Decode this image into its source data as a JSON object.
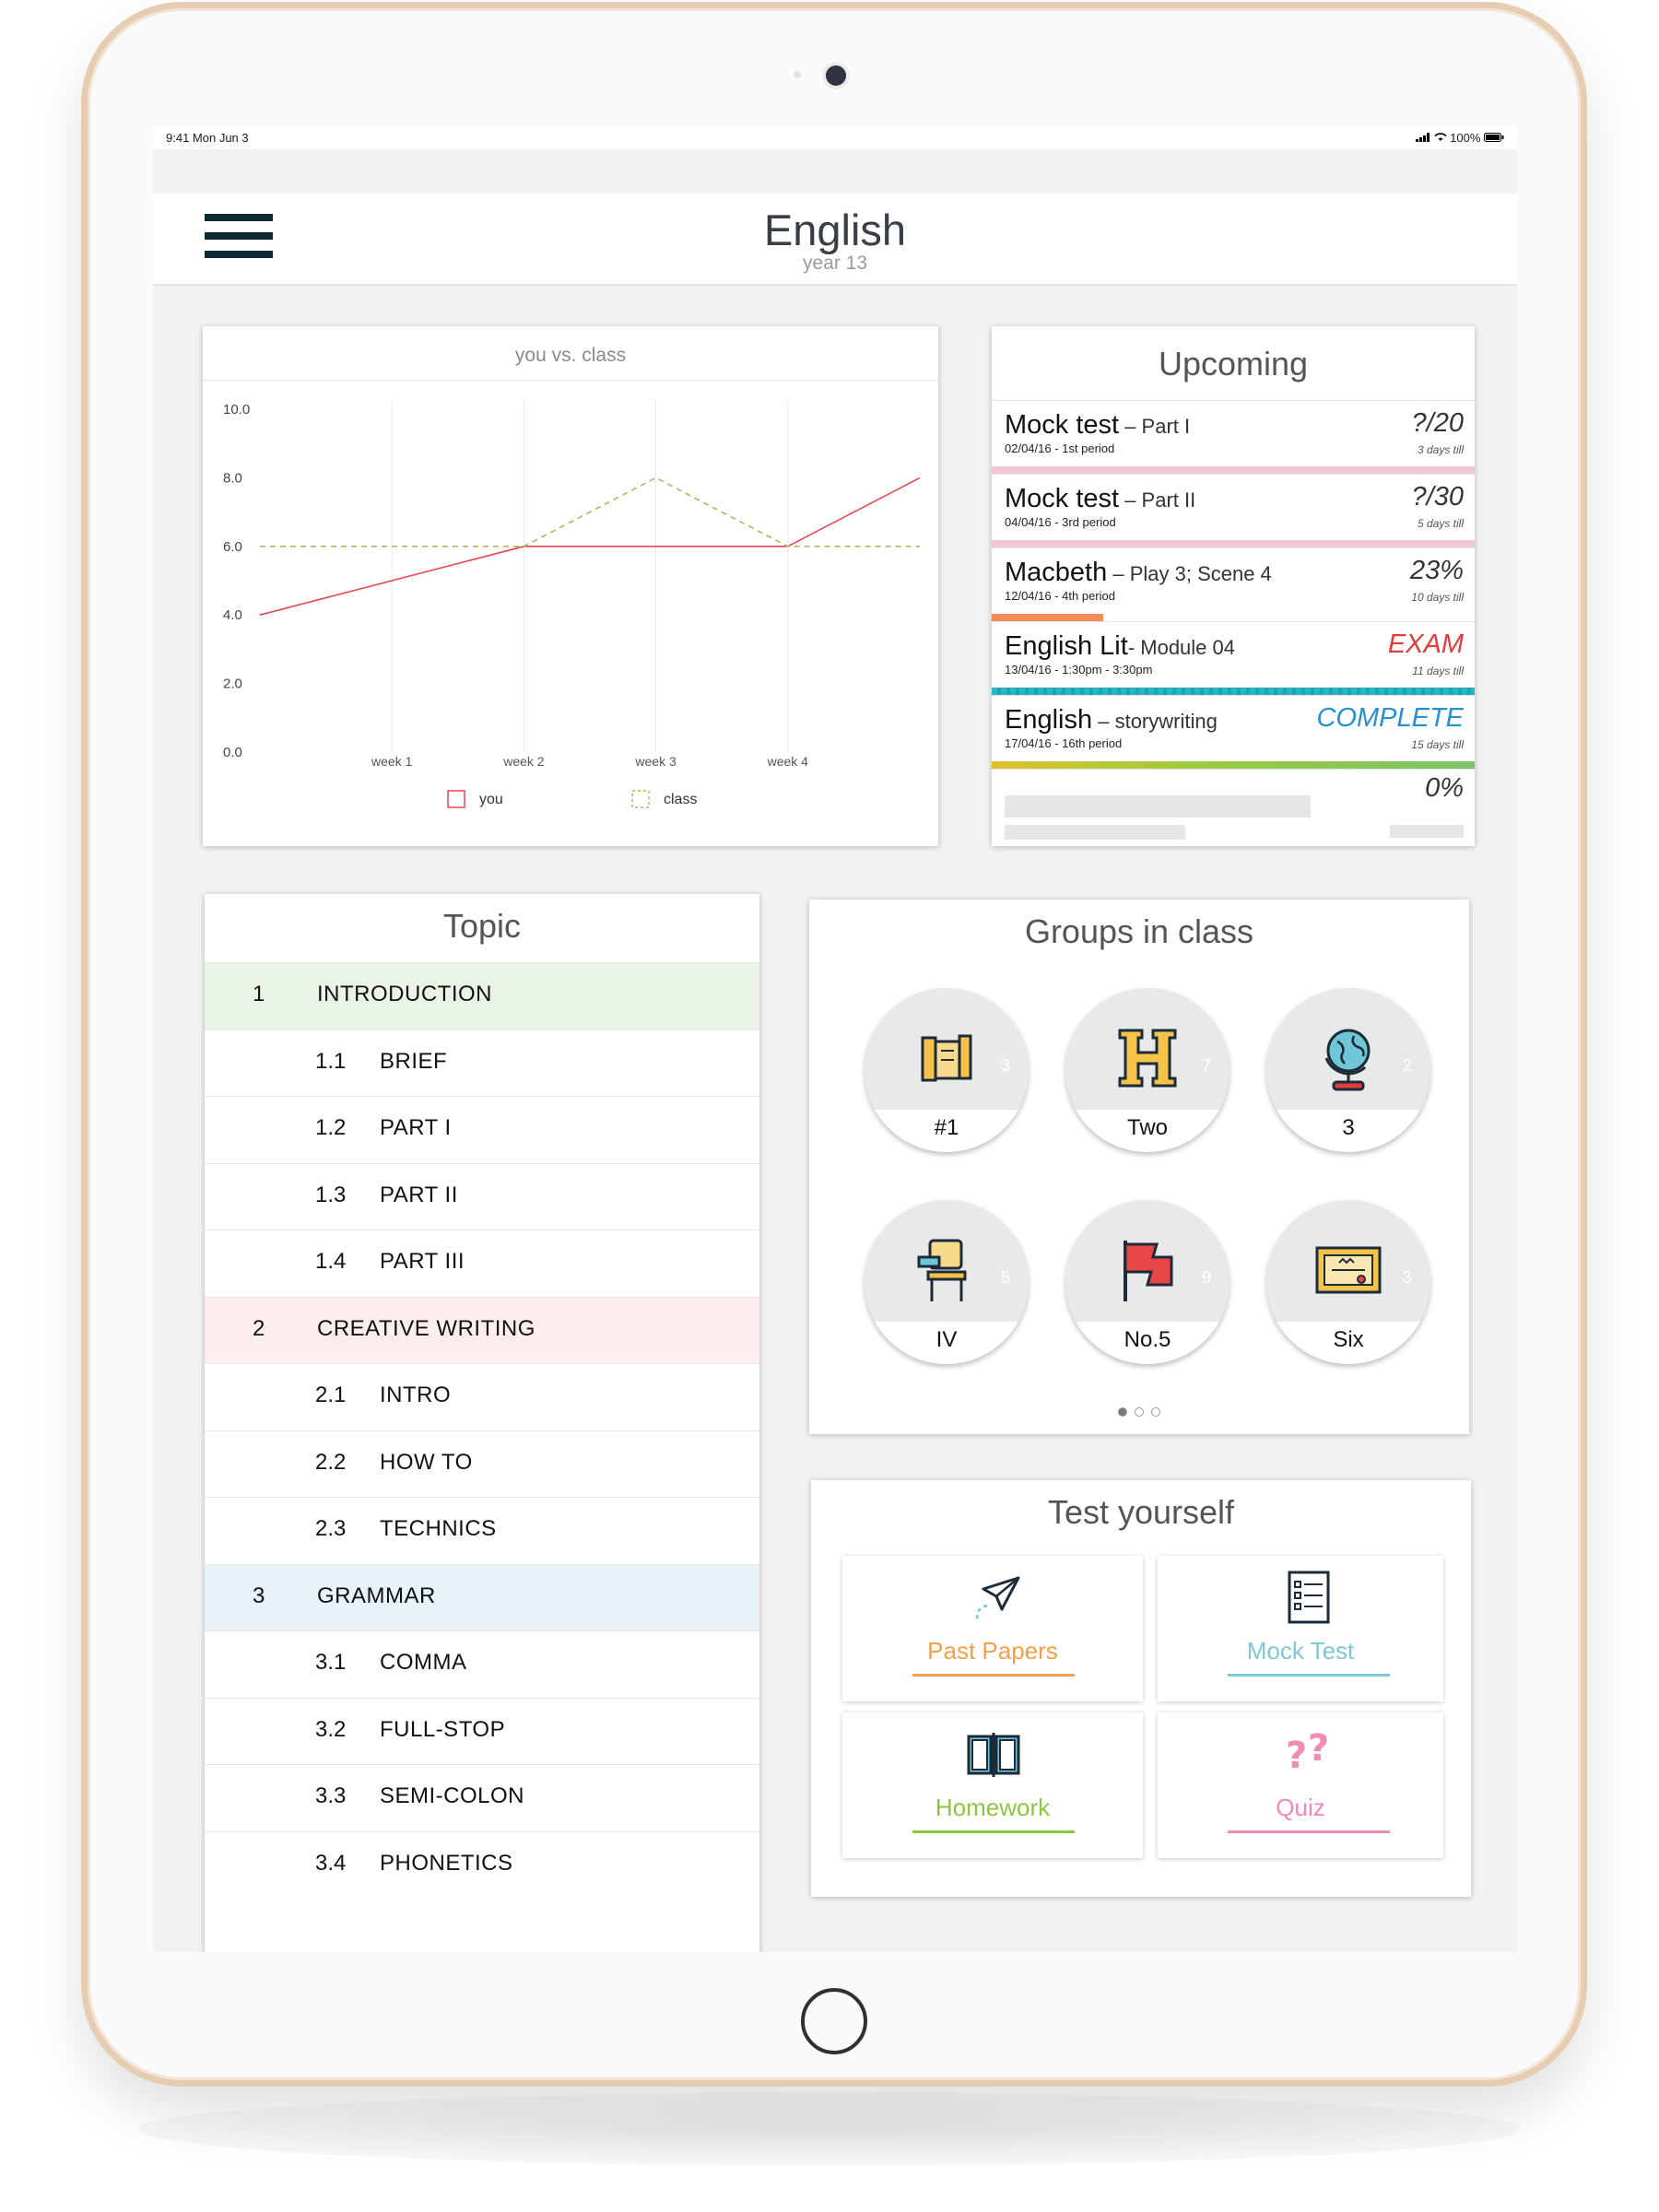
{
  "status": {
    "time": "9:41  Mon Jun 3",
    "battery": "100%"
  },
  "header": {
    "title": "English",
    "subtitle": "year 13"
  },
  "chart_data": {
    "type": "line",
    "title": "you vs. class",
    "categories": [
      "week 1",
      "week 2",
      "week 3",
      "week 4"
    ],
    "x": [
      0,
      1,
      2,
      3,
      4,
      5
    ],
    "series": [
      {
        "name": "you",
        "values": [
          4.0,
          5.0,
          6.0,
          6.0,
          6.0,
          8.0
        ],
        "color": "#e8484d",
        "style": "solid"
      },
      {
        "name": "class",
        "values": [
          6.0,
          6.0,
          6.0,
          8.0,
          6.0,
          6.0
        ],
        "color": "#b7b35a",
        "style": "dashed"
      }
    ],
    "yticks": [
      "10.0",
      "8.0",
      "6.0",
      "4.0",
      "2.0",
      "0.0"
    ],
    "ylim": [
      0,
      10
    ],
    "legend": "bottom",
    "grid": "vertical"
  },
  "upcoming": {
    "title": "Upcoming",
    "items": [
      {
        "name": "Mock test",
        "sub": " – Part I",
        "date": "02/04/16 - 1st period",
        "score": "?/20",
        "till": "3 days till",
        "bar_color": "#f2c8d4",
        "progress": 1.0
      },
      {
        "name": "Mock test",
        "sub": " – Part II",
        "date": "04/04/16 - 3rd period",
        "score": "?/30",
        "till": "5 days till",
        "bar_color": "#f2c8d4",
        "progress": 1.0
      },
      {
        "name": "Macbeth",
        "sub": " – Play 3; Scene 4",
        "date": "12/04/16 - 4th period",
        "score": "23%",
        "till": "10 days till",
        "bar_color": "#f28a5a",
        "progress": 0.23
      },
      {
        "name": "English Lit",
        "sub": "- Module 04",
        "date": "13/04/16 - 1:30pm - 3:30pm",
        "score": "EXAM",
        "till": "11 days till",
        "bar_color": "#27b6c4",
        "progress": 1.0,
        "score_color": "#e23b3b"
      },
      {
        "name": "English",
        "sub": " – storywriting",
        "date": "17/04/16 - 16th period",
        "score": "COMPLETE",
        "till": "15 days till",
        "bar_color": "#9ccc3c",
        "progress": 1.0,
        "score_color": "#2a8fcf"
      }
    ],
    "placeholder_score": "0%"
  },
  "topic": {
    "title": "Topic",
    "rows": [
      {
        "num": "1",
        "label": "INTRODUCTION",
        "kind": "section",
        "bg": "#eaf4e6"
      },
      {
        "num": "1.1",
        "label": "BRIEF",
        "kind": "sub"
      },
      {
        "num": "1.2",
        "label": "PART I",
        "kind": "sub"
      },
      {
        "num": "1.3",
        "label": "PART II",
        "kind": "sub"
      },
      {
        "num": "1.4",
        "label": "PART III",
        "kind": "sub"
      },
      {
        "num": "2",
        "label": "CREATIVE WRITING",
        "kind": "section",
        "bg": "#fdeeee"
      },
      {
        "num": "2.1",
        "label": "INTRO",
        "kind": "sub"
      },
      {
        "num": "2.2",
        "label": "HOW TO",
        "kind": "sub"
      },
      {
        "num": "2.3",
        "label": "TECHNICS",
        "kind": "sub"
      },
      {
        "num": "3",
        "label": "GRAMMAR",
        "kind": "section",
        "bg": "#e7f3f8"
      },
      {
        "num": "3.1",
        "label": "COMMA",
        "kind": "sub"
      },
      {
        "num": "3.2",
        "label": "FULL-STOP",
        "kind": "sub"
      },
      {
        "num": "3.3",
        "label": "SEMI-COLON",
        "kind": "sub"
      },
      {
        "num": "3.4",
        "label": "PHONETICS",
        "kind": "sub"
      }
    ]
  },
  "groups": {
    "title": "Groups in class",
    "items": [
      {
        "label": "#1",
        "count": "3",
        "icon": "scroll-icon"
      },
      {
        "label": "Two",
        "count": "7",
        "icon": "letter-h-icon"
      },
      {
        "label": "3",
        "count": "2",
        "icon": "globe-icon"
      },
      {
        "label": "IV",
        "count": "5",
        "icon": "school-desk-icon"
      },
      {
        "label": "No.5",
        "count": "9",
        "icon": "flag-icon"
      },
      {
        "label": "Six",
        "count": "3",
        "icon": "certificate-icon"
      }
    ],
    "pages": 3,
    "current_page": 1
  },
  "test": {
    "title": "Test yourself",
    "items": [
      {
        "label": "Past Papers",
        "color": "#f2a04a",
        "icon": "paper-plane-icon"
      },
      {
        "label": "Mock Test",
        "color": "#7ec8d8",
        "icon": "checklist-icon"
      },
      {
        "label": "Homework",
        "color": "#8cc63f",
        "icon": "open-book-icon"
      },
      {
        "label": "Quiz",
        "color": "#f08cb4",
        "icon": "question-marks-icon"
      }
    ]
  }
}
